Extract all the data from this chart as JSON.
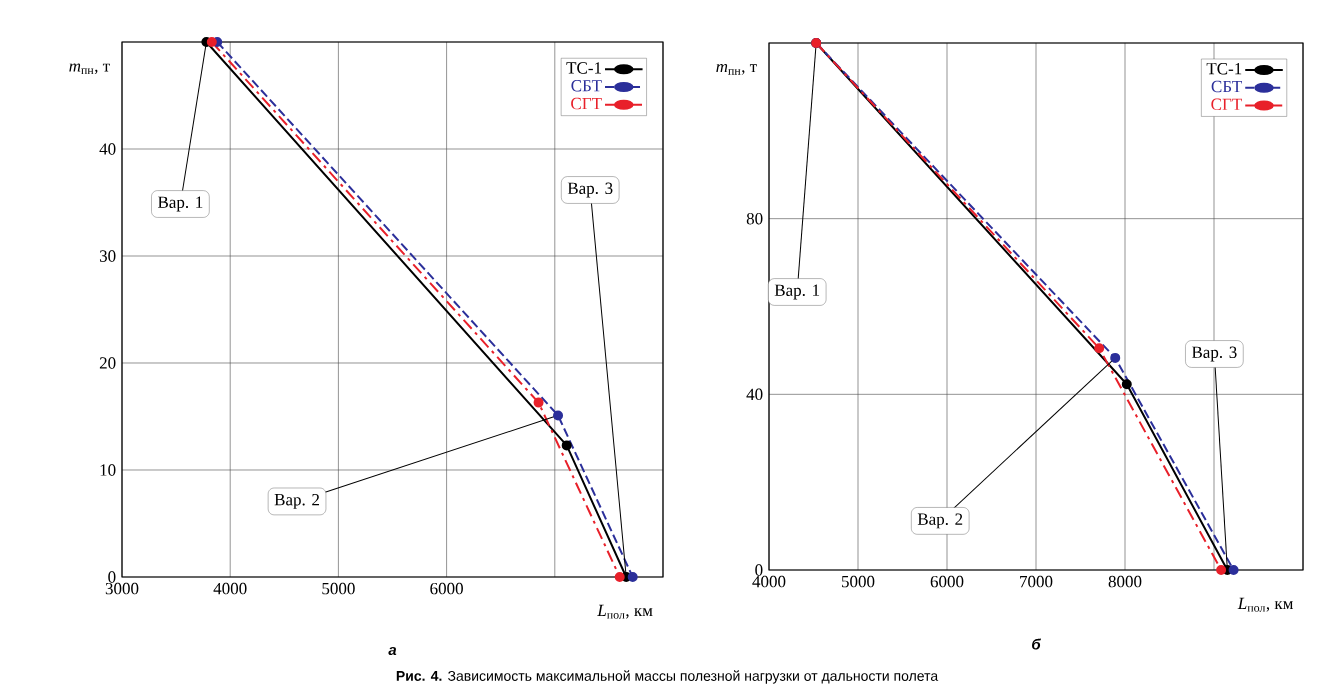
{
  "chart_data": [
    {
      "type": "line",
      "subtitle": "а",
      "xlabel": "*L*$_{пол}$, км",
      "ylabel": "*m*$_{пн}$, т",
      "xlim": [
        3000,
        8000
      ],
      "xticks": [
        3000,
        4000,
        5000,
        6000,
        {
          "value": 7000,
          "label": null
        },
        {
          "value": 8000,
          "label": null
        }
      ],
      "ylim": [
        0,
        50
      ],
      "yticks": [
        0,
        10,
        20,
        30,
        40,
        {
          "value": 50,
          "label": null
        }
      ],
      "grid": true,
      "legend": "top right",
      "marker": "circle",
      "series": [
        {
          "name": "ТС-1",
          "color": "#000000",
          "line_style": "solid",
          "x": [
            3780,
            7110,
            7660
          ],
          "values": [
            50,
            12.3,
            0
          ]
        },
        {
          "name": "СБТ",
          "color": "#2b2f9a",
          "line_style": "dashed",
          "x": [
            3880,
            7030,
            7720
          ],
          "values": [
            50,
            15.1,
            0
          ]
        },
        {
          "name": "СГТ",
          "color": "#e8202a",
          "line_style": "dashdot",
          "x": [
            3830,
            6850,
            7600
          ],
          "values": [
            50,
            16.3,
            0
          ]
        }
      ],
      "annotations": [
        {
          "text": "Вар. 1",
          "x": 3780,
          "y": 50
        },
        {
          "text": "Вар. 2",
          "x": 7030,
          "y": 15.1
        },
        {
          "text": "Вар. 3",
          "x": 7660,
          "y": 0
        },
        "**Рис. 4.** Зависимость максимальной массы полезной нагрузки от дальности полета"
      ]
    },
    {
      "type": "line",
      "subtitle": "б",
      "xlabel": "*L*$_{пол}$, км",
      "ylabel": "*m*$_{пн}$, т",
      "xlim": [
        4000,
        10000
      ],
      "xticks": [
        4000,
        5000,
        6000,
        7000,
        8000,
        {
          "value": 9000,
          "label": null
        },
        {
          "value": 10000,
          "label": null
        }
      ],
      "ylim": [
        0,
        120
      ],
      "yticks": [
        0,
        40,
        80,
        {
          "value": 120,
          "label": null
        }
      ],
      "grid": true,
      "legend": "top right",
      "marker": "circle",
      "series": [
        {
          "name": "ТС-1",
          "color": "#000000",
          "line_style": "solid",
          "x": [
            4530,
            8020,
            9150
          ],
          "values": [
            120,
            42.3,
            0
          ]
        },
        {
          "name": "СБТ",
          "color": "#2b2f9a",
          "line_style": "dashed",
          "x": [
            4530,
            7890,
            9220
          ],
          "values": [
            120,
            48.3,
            0
          ]
        },
        {
          "name": "СГТ",
          "color": "#e8202a",
          "line_style": "dashdot",
          "x": [
            4530,
            7710,
            9080
          ],
          "values": [
            120,
            50.5,
            0
          ]
        }
      ],
      "annotations": [
        {
          "text": "Вар. 1",
          "x": 4530,
          "y": 120
        },
        {
          "text": "Вар. 2",
          "x": 7890,
          "y": 48.3
        },
        {
          "text": "Вар. 3",
          "x": 9150,
          "y": 0
        }
      ]
    }
  ]
}
